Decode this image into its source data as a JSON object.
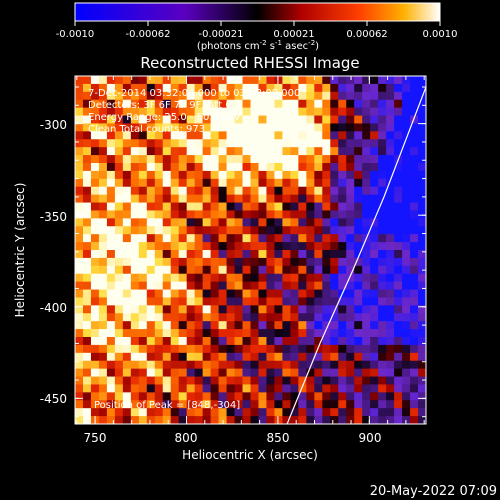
{
  "chart_data": {
    "type": "heatmap",
    "title": "Reconstructed RHESSI Image",
    "xlabel": "Heliocentric X (arcsec)",
    "ylabel": "Heliocentric Y (arcsec)",
    "xlim": [
      739,
      931
    ],
    "ylim": [
      -464,
      -274
    ],
    "xticks": [
      750,
      800,
      850,
      900
    ],
    "yticks": [
      -300,
      -350,
      -400,
      -450
    ],
    "colorbar": {
      "range": [
        -0.001,
        0.001
      ],
      "ticks": [
        "-0.0010",
        "-0.00062",
        "-0.00021",
        "0.00021",
        "0.00062",
        "0.0010"
      ],
      "unit_main": "(photons cm",
      "unit_sup1": "-2",
      "unit_mid": " s",
      "unit_sup2": "-1",
      "unit_mid2": " asec",
      "unit_sup3": "-2",
      "unit_end": ")",
      "colormap": [
        "#0000ff",
        "#6a00b8",
        "#000000",
        "#9a0000",
        "#ff3000",
        "#ffa500",
        "#ffff80",
        "#ffffff"
      ]
    },
    "annotations": [
      "7-Dec-2014 03:32:04.000 to 03:33:08.000",
      "Detectors: 3F 6F 7F 9F, Att 0",
      "Energy Range: 25.0 - 50.0 keV",
      "Clean     Total counts: 973"
    ],
    "peak_label": "Position of Peak = [848,-304]",
    "limb_curve": [
      [
        855,
        -464
      ],
      [
        873,
        -420
      ],
      [
        891,
        -380
      ],
      [
        908,
        -340
      ],
      [
        931,
        -280
      ]
    ]
  },
  "footer": {
    "timestamp": "20-May-2022 07:09"
  }
}
